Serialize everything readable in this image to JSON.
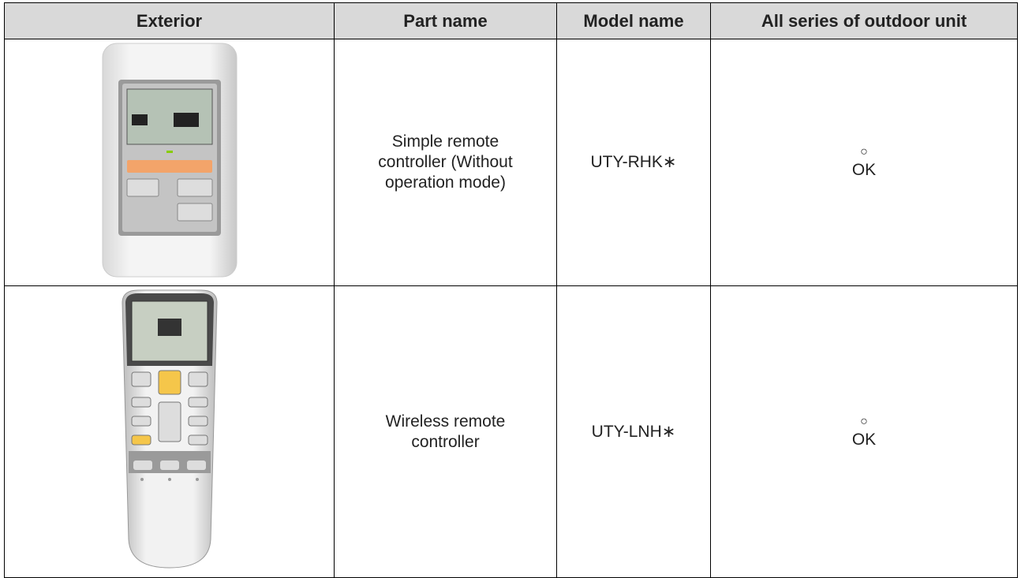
{
  "table": {
    "header": [
      "Exterior",
      "Part name",
      "Model name",
      "All series of outdoor unit"
    ],
    "rows": [
      {
        "part_name": "Simple remote controller (Without operation mode)",
        "model_name": "UTY-RHK∗",
        "symbol": "○",
        "result": "OK"
      },
      {
        "part_name": "Wireless remote controller",
        "model_name": "UTY-LNH∗",
        "symbol": "○",
        "result": "OK"
      }
    ]
  }
}
